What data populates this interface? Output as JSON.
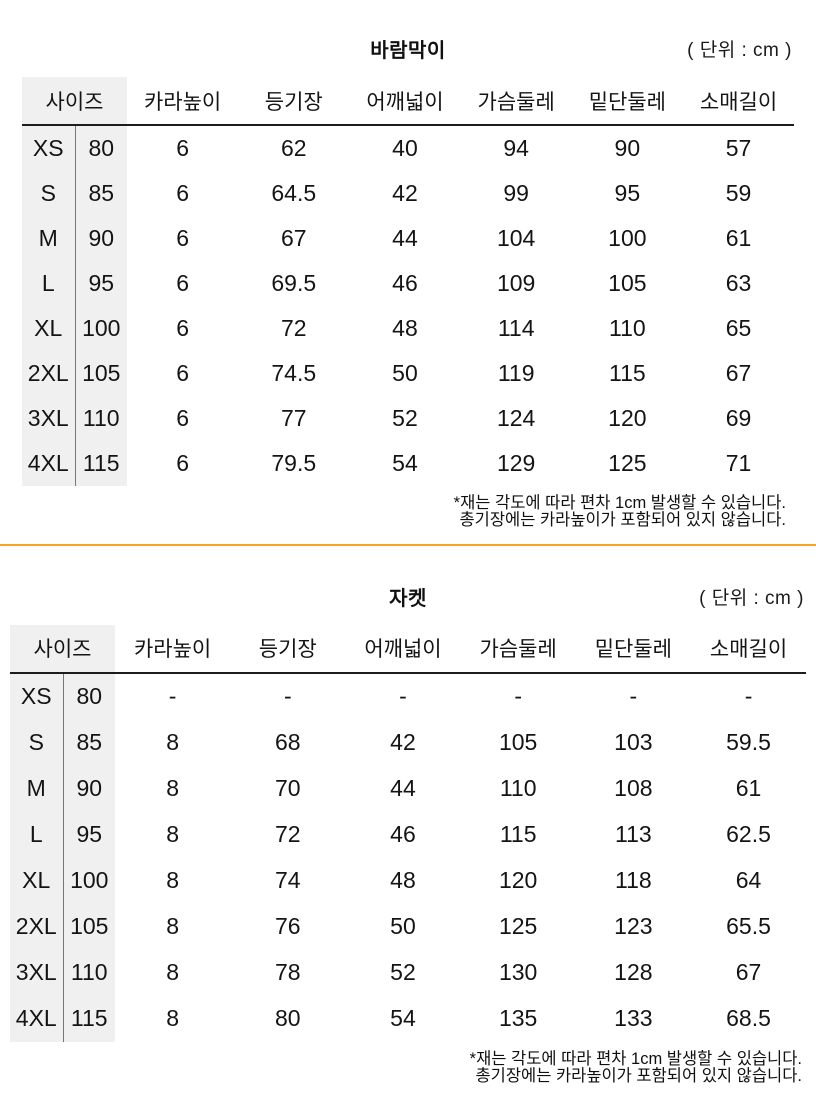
{
  "unit_label": "( 단위 : cm )",
  "columns": [
    "사이즈",
    "카라높이",
    "등기장",
    "어깨넓이",
    "가슴둘레",
    "밑단둘레",
    "소매길이"
  ],
  "footnote": {
    "line1": "*재는 각도에 따라 편차 1cm 발생할 수 있습니다.",
    "line2": "총기장에는 카라높이가 포함되어 있지 않습니다."
  },
  "tables": [
    {
      "title": "바람막이",
      "rows": [
        [
          "XS",
          "80",
          "6",
          "62",
          "40",
          "94",
          "90",
          "57"
        ],
        [
          "S",
          "85",
          "6",
          "64.5",
          "42",
          "99",
          "95",
          "59"
        ],
        [
          "M",
          "90",
          "6",
          "67",
          "44",
          "104",
          "100",
          "61"
        ],
        [
          "L",
          "95",
          "6",
          "69.5",
          "46",
          "109",
          "105",
          "63"
        ],
        [
          "XL",
          "100",
          "6",
          "72",
          "48",
          "114",
          "110",
          "65"
        ],
        [
          "2XL",
          "105",
          "6",
          "74.5",
          "50",
          "119",
          "115",
          "67"
        ],
        [
          "3XL",
          "110",
          "6",
          "77",
          "52",
          "124",
          "120",
          "69"
        ],
        [
          "4XL",
          "115",
          "6",
          "79.5",
          "54",
          "129",
          "125",
          "71"
        ]
      ]
    },
    {
      "title": "자켓",
      "rows": [
        [
          "XS",
          "80",
          "-",
          "-",
          "-",
          "-",
          "-",
          "-"
        ],
        [
          "S",
          "85",
          "8",
          "68",
          "42",
          "105",
          "103",
          "59.5"
        ],
        [
          "M",
          "90",
          "8",
          "70",
          "44",
          "110",
          "108",
          "61"
        ],
        [
          "L",
          "95",
          "8",
          "72",
          "46",
          "115",
          "113",
          "62.5"
        ],
        [
          "XL",
          "100",
          "8",
          "74",
          "48",
          "120",
          "118",
          "64"
        ],
        [
          "2XL",
          "105",
          "8",
          "76",
          "50",
          "125",
          "123",
          "65.5"
        ],
        [
          "3XL",
          "110",
          "8",
          "78",
          "52",
          "130",
          "128",
          "67"
        ],
        [
          "4XL",
          "115",
          "8",
          "80",
          "54",
          "135",
          "133",
          "68.5"
        ]
      ]
    }
  ],
  "colors": {
    "accent_divider": "#f7a127",
    "size_column_bg": "#f0f0f0",
    "header_underline": "#1c1c1c",
    "text": "#141414"
  }
}
